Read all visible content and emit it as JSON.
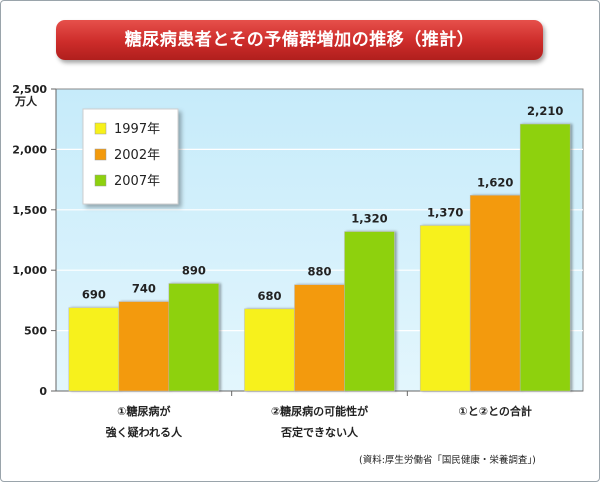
{
  "title": "糖尿病患者とその予備群増加の推移（推計）",
  "source": "(資料:厚生労働省「国民健康・栄養調査」)",
  "chart_data": {
    "type": "bar",
    "ylabel": "万人",
    "ylim": [
      0,
      2500
    ],
    "yticks": [
      "0",
      "500",
      "1,000",
      "1,500",
      "2,000",
      "2,500"
    ],
    "grid": true,
    "legend_position": "top-left",
    "categories": [
      [
        "①糖尿病が",
        "強く疑われる人"
      ],
      [
        "②糖尿病の可能性が",
        "否定できない人"
      ],
      [
        "①と②との合計"
      ]
    ],
    "series": [
      {
        "name": "1997年",
        "color": "#f7f11a",
        "values": [
          690,
          680,
          1370
        ],
        "labels": [
          "690",
          "680",
          "1,370"
        ]
      },
      {
        "name": "2002年",
        "color": "#f39a0c",
        "values": [
          740,
          880,
          1620
        ],
        "labels": [
          "740",
          "880",
          "1,620"
        ]
      },
      {
        "name": "2007年",
        "color": "#8ed10f",
        "values": [
          890,
          1320,
          2210
        ],
        "labels": [
          "890",
          "1,320",
          "2,210"
        ]
      }
    ],
    "plot_background": "#cdeefb"
  }
}
